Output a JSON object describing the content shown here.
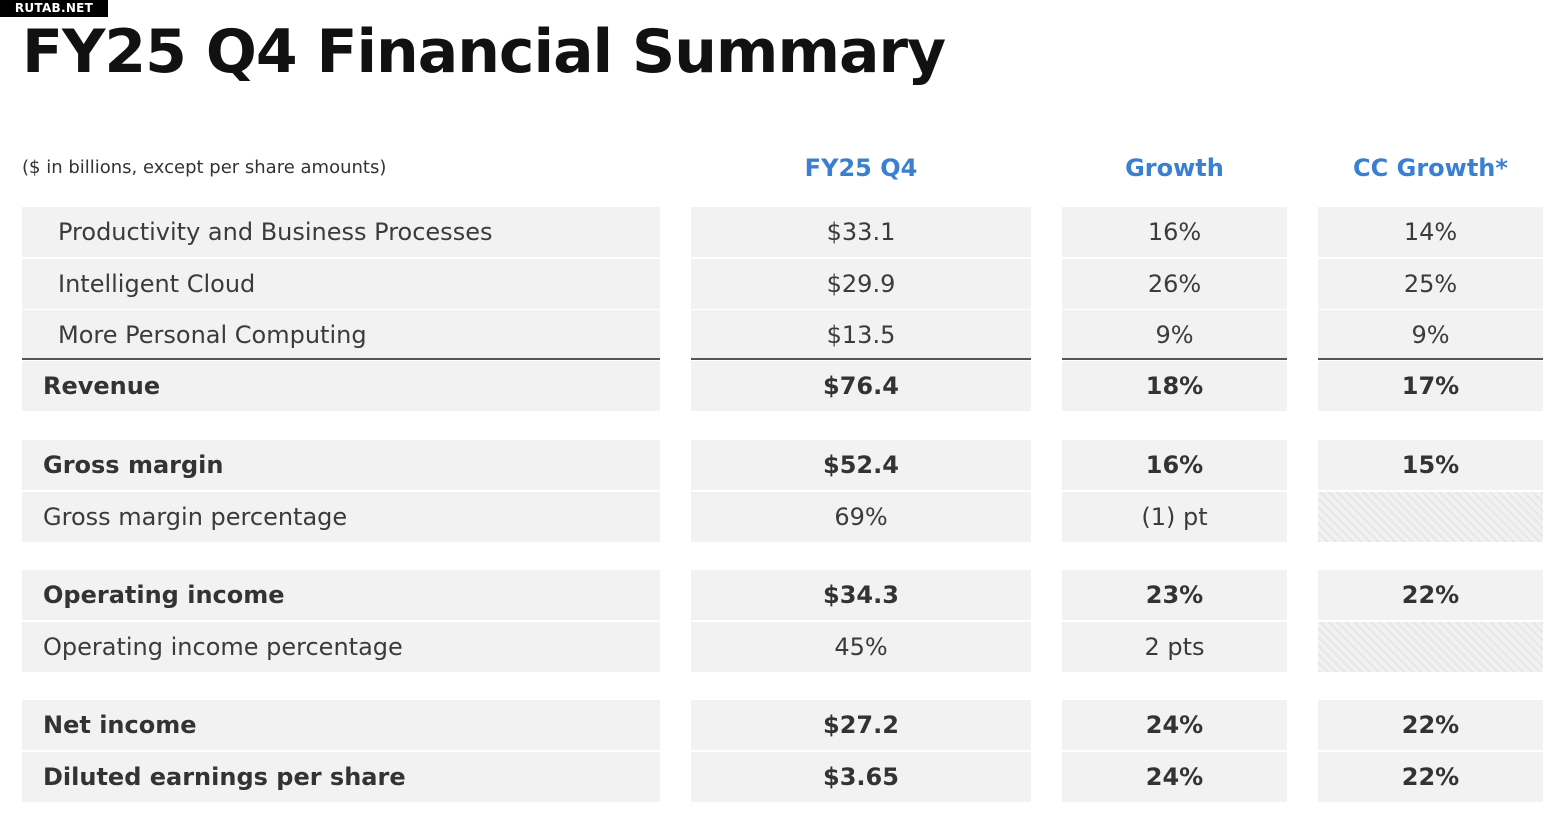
{
  "watermark": "RUTAB.NET",
  "title": "FY25 Q4 Financial Summary",
  "units_note": "($ in billions, except per share amounts)",
  "columns": [
    "FY25 Q4",
    "Growth",
    "CC Growth*"
  ],
  "rows": [
    {
      "label": "Productivity and Business Processes",
      "fy25q4": "$33.1",
      "growth": "16%",
      "cc_growth": "14%"
    },
    {
      "label": "Intelligent Cloud",
      "fy25q4": "$29.9",
      "growth": "26%",
      "cc_growth": "25%"
    },
    {
      "label": "More Personal Computing",
      "fy25q4": "$13.5",
      "growth": "9%",
      "cc_growth": "9%"
    },
    {
      "label": "Revenue",
      "fy25q4": "$76.4",
      "growth": "18%",
      "cc_growth": "17%"
    },
    {
      "label": "Gross margin",
      "fy25q4": "$52.4",
      "growth": "16%",
      "cc_growth": "15%"
    },
    {
      "label": "Gross margin percentage",
      "fy25q4": "69%",
      "growth": "(1) pt",
      "cc_growth": ""
    },
    {
      "label": "Operating income",
      "fy25q4": "$34.3",
      "growth": "23%",
      "cc_growth": "22%"
    },
    {
      "label": "Operating income percentage",
      "fy25q4": "45%",
      "growth": "2 pts",
      "cc_growth": ""
    },
    {
      "label": "Net income",
      "fy25q4": "$27.2",
      "growth": "24%",
      "cc_growth": "22%"
    },
    {
      "label": "Diluted earnings per share",
      "fy25q4": "$3.65",
      "growth": "24%",
      "cc_growth": "22%"
    }
  ]
}
